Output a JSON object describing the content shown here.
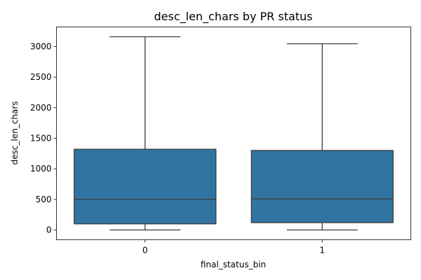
{
  "chart_data": {
    "type": "box",
    "title": "desc_len_chars by PR status",
    "xlabel": "final_status_bin",
    "ylabel": "desc_len_chars",
    "categories": [
      "0",
      "1"
    ],
    "boxes": [
      {
        "category": "0",
        "whisker_low": 0,
        "q1": 100,
        "median": 500,
        "q3": 1320,
        "whisker_high": 3160
      },
      {
        "category": "1",
        "whisker_low": 0,
        "q1": 120,
        "median": 510,
        "q3": 1300,
        "whisker_high": 3045
      }
    ],
    "ylim": [
      -160,
      3320
    ],
    "yticks": [
      0,
      500,
      1000,
      1500,
      2000,
      2500,
      3000
    ],
    "grid": false,
    "box_color": "#3274a1",
    "line_color": "#3b3b3b"
  }
}
